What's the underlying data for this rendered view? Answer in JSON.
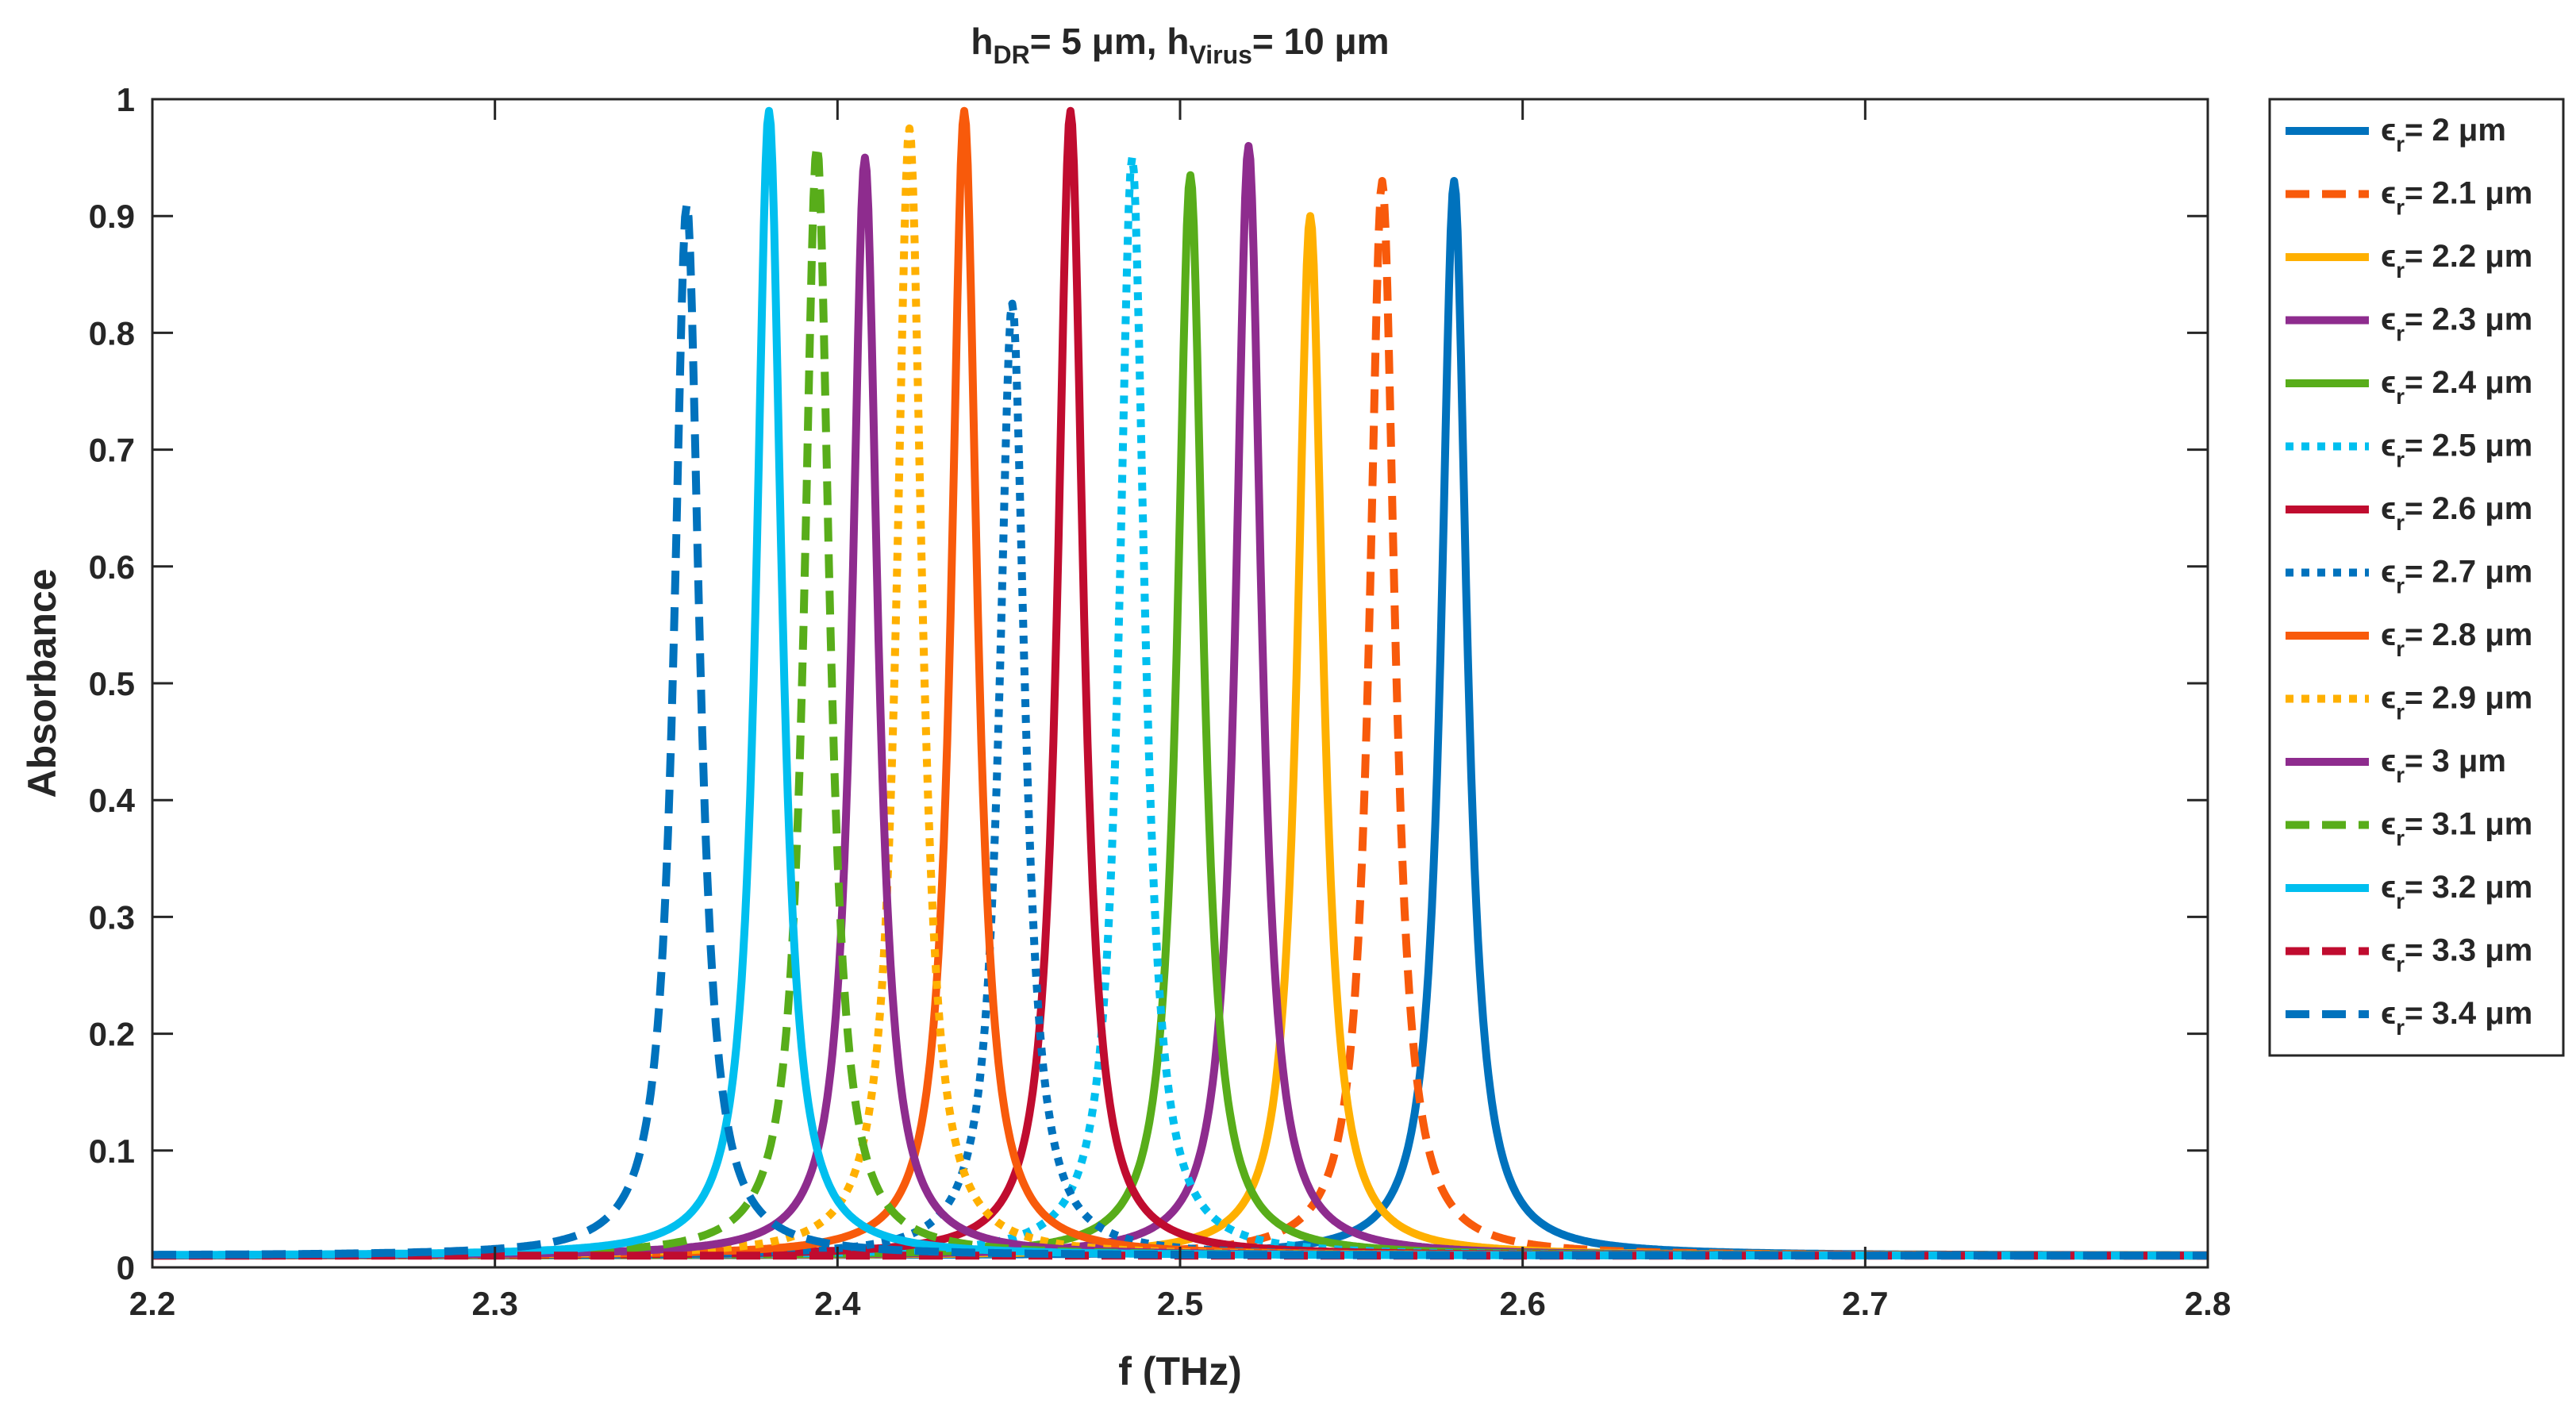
{
  "chart_data": {
    "type": "line",
    "title": "h_DR = 5 μm, h_Virus = 10 μm",
    "title_parts": {
      "h": "h",
      "sub1": "DR",
      "mid": "= 5 μm, h",
      "sub2": "Virus",
      "end": "= 10 μm"
    },
    "xlabel": "f (THz)",
    "ylabel": "Absorbance",
    "xlim": [
      2.2,
      2.8
    ],
    "ylim": [
      0,
      1
    ],
    "xticks": [
      "2.2",
      "2.3",
      "2.4",
      "2.5",
      "2.6",
      "2.7",
      "2.8"
    ],
    "yticks": [
      "0",
      "0.1",
      "0.2",
      "0.3",
      "0.4",
      "0.5",
      "0.6",
      "0.7",
      "0.8",
      "0.9",
      "1"
    ],
    "grid": false,
    "legend_position": "outside-right",
    "baseline": 0.01,
    "series": [
      {
        "name": "ε_r = 2 μm",
        "sub": "r",
        "value": "2",
        "peak_f": 2.58,
        "peak_a": 0.93,
        "style": "solid",
        "color": "#0072BD"
      },
      {
        "name": "ε_r = 2.1 μm",
        "sub": "r",
        "value": "2.1",
        "peak_f": 2.559,
        "peak_a": 0.93,
        "style": "dashed",
        "color": "#F85A0B"
      },
      {
        "name": "ε_r = 2.2 μm",
        "sub": "r",
        "value": "2.2",
        "peak_f": 2.538,
        "peak_a": 0.9,
        "style": "solid",
        "color": "#FFB000"
      },
      {
        "name": "ε_r = 2.3 μm",
        "sub": "r",
        "value": "2.3",
        "peak_f": 2.52,
        "peak_a": 0.96,
        "style": "solid",
        "color": "#8E2C8E"
      },
      {
        "name": "ε_r = 2.4 μm",
        "sub": "r",
        "value": "2.4",
        "peak_f": 2.503,
        "peak_a": 0.935,
        "style": "solid",
        "color": "#58AD1A"
      },
      {
        "name": "ε_r = 2.5 μm",
        "sub": "r",
        "value": "2.5",
        "peak_f": 2.486,
        "peak_a": 0.95,
        "style": "dotted",
        "color": "#00BFEF"
      },
      {
        "name": "ε_r = 2.6 μm",
        "sub": "r",
        "value": "2.6",
        "peak_f": 2.468,
        "peak_a": 0.99,
        "style": "solid",
        "color": "#C00C2F"
      },
      {
        "name": "ε_r = 2.7 μm",
        "sub": "r",
        "value": "2.7",
        "peak_f": 2.451,
        "peak_a": 0.825,
        "style": "dotted",
        "color": "#0072BD"
      },
      {
        "name": "ε_r = 2.8 μm",
        "sub": "r",
        "value": "2.8",
        "peak_f": 2.437,
        "peak_a": 0.99,
        "style": "solid",
        "color": "#F85A0B"
      },
      {
        "name": "ε_r = 2.9 μm",
        "sub": "r",
        "value": "2.9",
        "peak_f": 2.421,
        "peak_a": 0.975,
        "style": "dotted",
        "color": "#FFB000"
      },
      {
        "name": "ε_r = 3 μm",
        "sub": "r",
        "value": "3",
        "peak_f": 2.408,
        "peak_a": 0.95,
        "style": "solid",
        "color": "#8E2C8E"
      },
      {
        "name": "ε_r = 3.1 μm",
        "sub": "r",
        "value": "3.1",
        "peak_f": 2.394,
        "peak_a": 0.96,
        "style": "dashed",
        "color": "#58AD1A"
      },
      {
        "name": "ε_r = 3.2 μm",
        "sub": "r",
        "value": "3.2",
        "peak_f": 2.38,
        "peak_a": 0.99,
        "style": "solid",
        "color": "#00BFEF"
      },
      {
        "name": "ε_r = 3.3 μm",
        "sub": "r",
        "value": "3.3",
        "peak_f": 2.366,
        "peak_a": 0.01,
        "style": "dashed",
        "color": "#C00C2F"
      },
      {
        "name": "ε_r = 3.4 μm",
        "sub": "r",
        "value": "3.4",
        "peak_f": 2.356,
        "peak_a": 0.91,
        "style": "dashed",
        "color": "#0072BD"
      }
    ]
  }
}
